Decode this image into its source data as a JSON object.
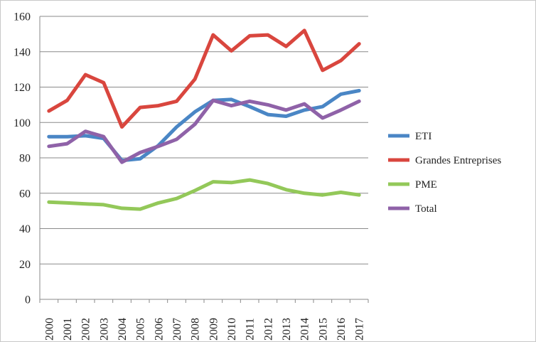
{
  "chart_data": {
    "type": "line",
    "title": "",
    "xlabel": "",
    "ylabel": "",
    "ylim": [
      0,
      160
    ],
    "yticks": [
      0,
      20,
      40,
      60,
      80,
      100,
      120,
      140,
      160
    ],
    "grid": true,
    "legend_position": "right",
    "categories": [
      "2000",
      "2001",
      "2002",
      "2003",
      "2004",
      "2005",
      "2006",
      "2007",
      "2008",
      "2009",
      "2010",
      "2011",
      "2012",
      "2013",
      "2014",
      "2015",
      "2016",
      "2017"
    ],
    "series": [
      {
        "name": "ETI",
        "color": "#4a86c5",
        "values": [
          92,
          92,
          92.5,
          91,
          78.5,
          79.5,
          87,
          97.5,
          106,
          112.5,
          113,
          109,
          104.5,
          103.5,
          107,
          109,
          116,
          118
        ]
      },
      {
        "name": "Grandes Entreprises",
        "color": "#d9463e",
        "values": [
          106.5,
          112.5,
          127,
          122.5,
          97.5,
          108.5,
          109.5,
          112,
          124.5,
          149.5,
          140.5,
          149,
          149.5,
          143,
          152,
          129.5,
          135,
          144.5
        ]
      },
      {
        "name": "PME",
        "color": "#93c859",
        "values": [
          55,
          54.5,
          54,
          53.5,
          51.5,
          51,
          54.5,
          57,
          61.5,
          66.5,
          66,
          67.5,
          65.5,
          62,
          60,
          59,
          60.5,
          59
        ]
      },
      {
        "name": "Total",
        "color": "#8f62a8",
        "values": [
          86.5,
          88,
          95,
          92,
          77.5,
          83,
          86.5,
          90.5,
          99,
          112.5,
          109.5,
          112,
          110,
          107,
          110.5,
          102.5,
          107,
          112
        ]
      }
    ]
  }
}
